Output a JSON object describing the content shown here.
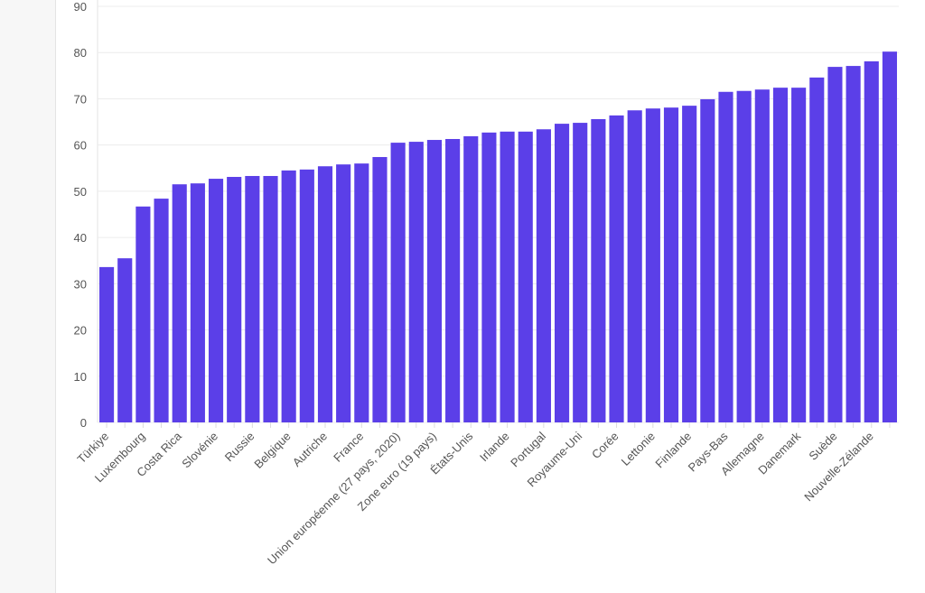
{
  "chart_data": {
    "type": "bar",
    "title": "",
    "xlabel": "",
    "ylabel": "",
    "ylim": [
      0,
      90
    ],
    "yticks": [
      0,
      10,
      20,
      30,
      40,
      50,
      60,
      70,
      80,
      90
    ],
    "grid": true,
    "color": "#5b3fe8",
    "categories": [
      "Türkiye",
      "",
      "Luxembourg",
      "",
      "Costa Rica",
      "",
      "Slovénie",
      "",
      "Russie",
      "",
      "Belgique",
      "",
      "Autriche",
      "",
      "France",
      "",
      "Union européenne (27 pays, 2020)",
      "",
      "Zone euro (19 pays)",
      "",
      "États-Unis",
      "",
      "Irlande",
      "",
      "Portugal",
      "",
      "Royaume-Uni",
      "",
      "Corée",
      "",
      "Lettonie",
      "",
      "Finlande",
      "",
      "Pays-Bas",
      "",
      "Allemagne",
      "",
      "Danemark",
      "",
      "Suède",
      "",
      "Nouvelle-Zélande",
      ""
    ],
    "values": [
      33.6,
      35.5,
      46.7,
      48.4,
      51.5,
      51.7,
      52.7,
      53.1,
      53.3,
      53.3,
      54.5,
      54.7,
      55.4,
      55.8,
      56.0,
      57.4,
      60.5,
      60.7,
      61.1,
      61.3,
      61.9,
      62.7,
      62.9,
      62.9,
      63.4,
      64.6,
      64.8,
      65.6,
      66.4,
      67.5,
      67.9,
      68.1,
      68.5,
      69.9,
      71.5,
      71.7,
      72.0,
      72.4,
      72.4,
      74.6,
      76.9,
      77.1,
      78.1,
      80.2
    ]
  }
}
